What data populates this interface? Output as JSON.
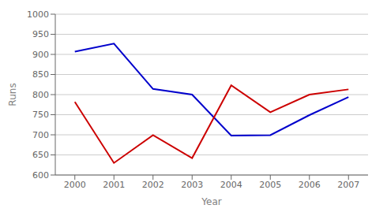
{
  "chart_data": {
    "type": "line",
    "x": [
      2000,
      2001,
      2002,
      2003,
      2004,
      2005,
      2006,
      2007
    ],
    "series": [
      {
        "color": "#0000CC",
        "values": [
          907,
          927,
          814,
          800,
          698,
          699,
          749,
          794
        ]
      },
      {
        "color": "#CC0000",
        "values": [
          782,
          630,
          699,
          642,
          823,
          756,
          800,
          813
        ]
      }
    ],
    "xlabel": "Year",
    "ylabel": "Runs",
    "xlim": [
      1999.5,
      2007.5
    ],
    "xticks": [
      2000,
      2001,
      2002,
      2003,
      2004,
      2005,
      2006,
      2007
    ],
    "ylim": [
      600,
      1000
    ],
    "yticks": [
      600,
      650,
      700,
      750,
      800,
      850,
      900,
      950,
      1000
    ],
    "grid": "y"
  }
}
